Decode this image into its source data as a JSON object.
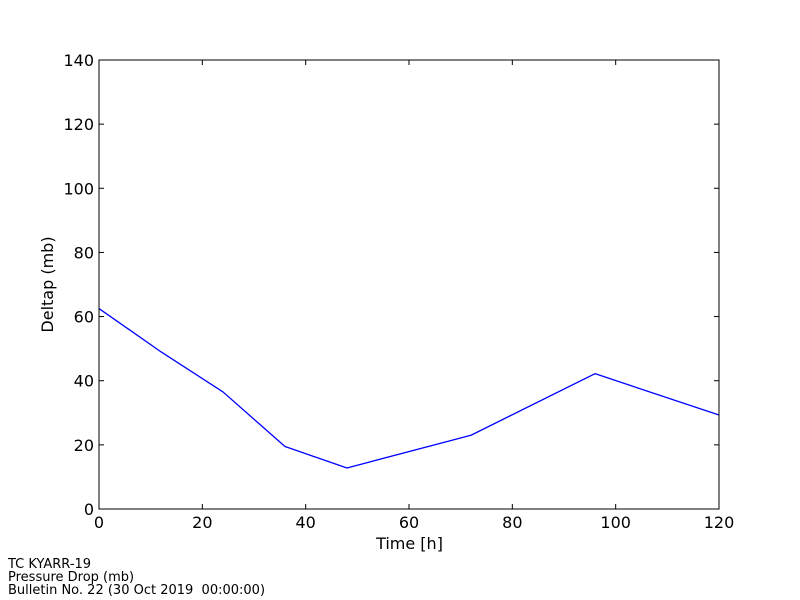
{
  "chart_data": {
    "type": "line",
    "xlabel": "Time [h]",
    "ylabel": "Deltap (mb)",
    "xlim": [
      0,
      120
    ],
    "ylim": [
      0,
      140
    ],
    "xticks": [
      0,
      20,
      40,
      60,
      80,
      100,
      120
    ],
    "yticks": [
      0,
      20,
      40,
      60,
      80,
      100,
      120,
      140
    ],
    "grid": false,
    "series": [
      {
        "color": "#0000ff",
        "x": [
          0,
          12,
          24,
          36,
          48,
          72,
          96,
          120
        ],
        "y": [
          62.5,
          49,
          36.5,
          19.5,
          12.8,
          23,
          42.2,
          29.3
        ]
      }
    ]
  },
  "footer": {
    "line1": "TC KYARR-19",
    "line2": "Pressure Drop (mb)",
    "line3": "Bulletin No. 22 (30 Oct 2019  00:00:00)"
  }
}
